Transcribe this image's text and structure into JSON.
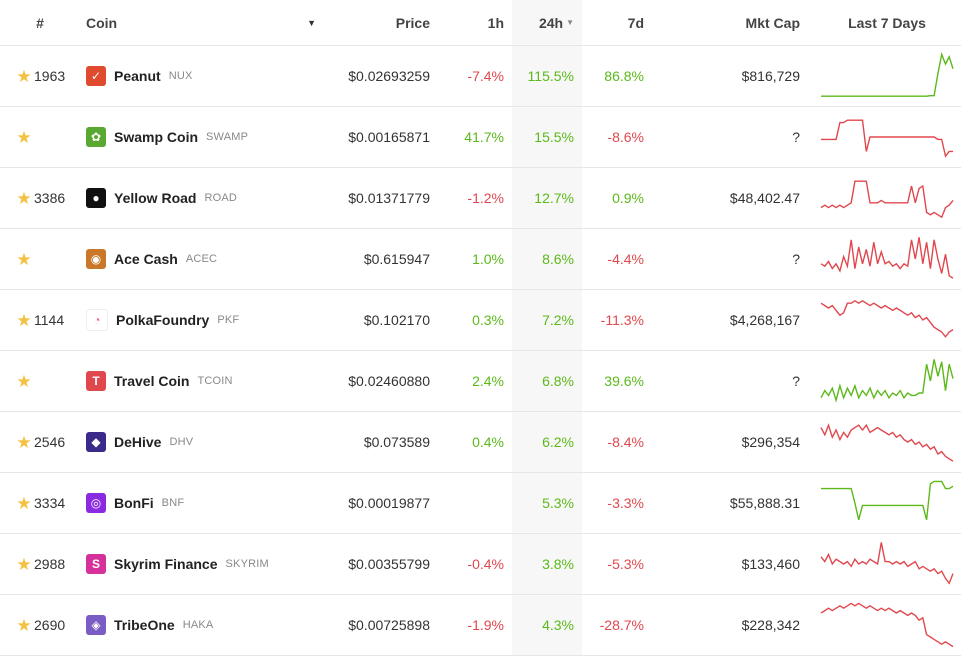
{
  "header": {
    "rank": "#",
    "coin": "Coin",
    "price": "Price",
    "h1": "1h",
    "h24": "24h",
    "d7": "7d",
    "mcap": "Mkt Cap",
    "chart": "Last 7 Days"
  },
  "colors": {
    "positive": "#5cb91a",
    "negative": "#e0484e",
    "star": "#f3c242"
  },
  "rows": [
    {
      "rank": "1963",
      "name": "Peanut",
      "symbol": "NUX",
      "price": "$0.02693259",
      "h1": "-7.4%",
      "h24": "115.5%",
      "d7": "86.8%",
      "mcap": "$816,729",
      "logo_color": "#e04a2e",
      "logo_glyph": "✓",
      "trend": "positive",
      "spark": [
        0.08,
        0.08,
        0.08,
        0.08,
        0.08,
        0.08,
        0.08,
        0.08,
        0.08,
        0.08,
        0.08,
        0.08,
        0.08,
        0.08,
        0.08,
        0.08,
        0.08,
        0.08,
        0.08,
        0.08,
        0.08,
        0.08,
        0.08,
        0.08,
        0.08,
        0.08,
        0.08,
        0.08,
        0.08,
        0.09,
        0.09,
        0.55,
        0.95,
        0.75,
        0.9,
        0.65
      ]
    },
    {
      "rank": "",
      "name": "Swamp Coin",
      "symbol": "SWAMP",
      "price": "$0.00165871",
      "h1": "41.7%",
      "h24": "15.5%",
      "d7": "-8.6%",
      "mcap": "?",
      "logo_color": "#5aa832",
      "logo_glyph": "✿",
      "trend": "negative",
      "spark": [
        0.45,
        0.45,
        0.45,
        0.45,
        0.45,
        0.8,
        0.8,
        0.85,
        0.85,
        0.85,
        0.85,
        0.85,
        0.2,
        0.5,
        0.5,
        0.5,
        0.5,
        0.5,
        0.5,
        0.5,
        0.5,
        0.5,
        0.5,
        0.5,
        0.5,
        0.5,
        0.5,
        0.5,
        0.5,
        0.5,
        0.5,
        0.45,
        0.45,
        0.1,
        0.2,
        0.2
      ]
    },
    {
      "rank": "3386",
      "name": "Yellow Road",
      "symbol": "ROAD",
      "price": "$0.01371779",
      "h1": "-1.2%",
      "h24": "12.7%",
      "d7": "0.9%",
      "mcap": "$48,402.47",
      "logo_color": "#111111",
      "logo_glyph": "●",
      "trend": "negative",
      "spark": [
        0.3,
        0.35,
        0.3,
        0.35,
        0.3,
        0.35,
        0.3,
        0.35,
        0.4,
        0.85,
        0.85,
        0.85,
        0.85,
        0.4,
        0.4,
        0.4,
        0.45,
        0.4,
        0.4,
        0.4,
        0.4,
        0.4,
        0.4,
        0.4,
        0.75,
        0.4,
        0.7,
        0.75,
        0.2,
        0.15,
        0.2,
        0.15,
        0.1,
        0.3,
        0.35,
        0.45
      ]
    },
    {
      "rank": "",
      "name": "Ace Cash",
      "symbol": "ACEC",
      "price": "$0.615947",
      "h1": "1.0%",
      "h24": "8.6%",
      "d7": "-4.4%",
      "mcap": "?",
      "logo_color": "#c9782a",
      "logo_glyph": "◉",
      "trend": "negative",
      "spark": [
        0.4,
        0.35,
        0.45,
        0.3,
        0.4,
        0.25,
        0.55,
        0.35,
        0.9,
        0.3,
        0.75,
        0.4,
        0.7,
        0.35,
        0.85,
        0.4,
        0.65,
        0.4,
        0.45,
        0.35,
        0.4,
        0.3,
        0.4,
        0.35,
        0.9,
        0.5,
        0.95,
        0.4,
        0.85,
        0.3,
        0.9,
        0.5,
        0.2,
        0.6,
        0.15,
        0.1
      ]
    },
    {
      "rank": "1144",
      "name": "PolkaFoundry",
      "symbol": "PKF",
      "price": "$0.102170",
      "h1": "0.3%",
      "h24": "7.2%",
      "d7": "-11.3%",
      "mcap": "$4,268,167",
      "logo_color": "#ffffff",
      "logo_glyph": "◔",
      "trend": "negative",
      "spark": [
        0.85,
        0.8,
        0.75,
        0.8,
        0.7,
        0.6,
        0.65,
        0.85,
        0.85,
        0.9,
        0.85,
        0.9,
        0.85,
        0.8,
        0.85,
        0.8,
        0.75,
        0.8,
        0.75,
        0.7,
        0.75,
        0.7,
        0.65,
        0.6,
        0.65,
        0.55,
        0.6,
        0.5,
        0.55,
        0.45,
        0.35,
        0.3,
        0.25,
        0.15,
        0.25,
        0.3
      ]
    },
    {
      "rank": "",
      "name": "Travel Coin",
      "symbol": "TCOIN",
      "price": "$0.02460880",
      "h1": "2.4%",
      "h24": "6.8%",
      "d7": "39.6%",
      "mcap": "?",
      "logo_color": "#e0484e",
      "logo_glyph": "T",
      "trend": "positive",
      "spark": [
        0.15,
        0.3,
        0.2,
        0.35,
        0.1,
        0.4,
        0.15,
        0.35,
        0.2,
        0.4,
        0.15,
        0.3,
        0.2,
        0.35,
        0.15,
        0.3,
        0.2,
        0.3,
        0.15,
        0.25,
        0.2,
        0.3,
        0.15,
        0.25,
        0.2,
        0.2,
        0.25,
        0.25,
        0.85,
        0.5,
        0.95,
        0.6,
        0.9,
        0.3,
        0.85,
        0.55
      ]
    },
    {
      "rank": "2546",
      "name": "DeHive",
      "symbol": "DHV",
      "price": "$0.073589",
      "h1": "0.4%",
      "h24": "6.2%",
      "d7": "-8.4%",
      "mcap": "$296,354",
      "logo_color": "#3b2a8a",
      "logo_glyph": "◆",
      "trend": "negative",
      "spark": [
        0.8,
        0.65,
        0.85,
        0.6,
        0.75,
        0.55,
        0.7,
        0.6,
        0.75,
        0.8,
        0.85,
        0.75,
        0.85,
        0.7,
        0.75,
        0.8,
        0.75,
        0.7,
        0.65,
        0.7,
        0.6,
        0.65,
        0.55,
        0.5,
        0.55,
        0.45,
        0.5,
        0.4,
        0.45,
        0.35,
        0.4,
        0.25,
        0.3,
        0.2,
        0.15,
        0.1
      ]
    },
    {
      "rank": "3334",
      "name": "BonFi",
      "symbol": "BNF",
      "price": "$0.00019877",
      "h1": "",
      "h24": "5.3%",
      "d7": "-3.3%",
      "mcap": "$55,888.31",
      "logo_color": "#8a2be2",
      "logo_glyph": "◎",
      "trend": "positive",
      "spark": [
        0.8,
        0.8,
        0.8,
        0.8,
        0.8,
        0.8,
        0.8,
        0.8,
        0.8,
        0.5,
        0.15,
        0.45,
        0.45,
        0.45,
        0.45,
        0.45,
        0.45,
        0.45,
        0.45,
        0.45,
        0.45,
        0.45,
        0.45,
        0.45,
        0.45,
        0.45,
        0.45,
        0.45,
        0.15,
        0.9,
        0.95,
        0.95,
        0.95,
        0.8,
        0.8,
        0.85
      ]
    },
    {
      "rank": "2988",
      "name": "Skyrim Finance",
      "symbol": "SKYRIM",
      "price": "$0.00355799",
      "h1": "-0.4%",
      "h24": "3.8%",
      "d7": "-5.3%",
      "mcap": "$133,460",
      "logo_color": "#d6319b",
      "logo_glyph": "S",
      "trend": "negative",
      "spark": [
        0.65,
        0.55,
        0.7,
        0.5,
        0.6,
        0.55,
        0.5,
        0.55,
        0.45,
        0.6,
        0.5,
        0.55,
        0.5,
        0.6,
        0.55,
        0.5,
        0.95,
        0.55,
        0.55,
        0.5,
        0.55,
        0.5,
        0.55,
        0.45,
        0.5,
        0.55,
        0.4,
        0.45,
        0.4,
        0.35,
        0.4,
        0.3,
        0.35,
        0.2,
        0.1,
        0.3
      ]
    },
    {
      "rank": "2690",
      "name": "TribeOne",
      "symbol": "HAKA",
      "price": "$0.00725898",
      "h1": "-1.9%",
      "h24": "4.3%",
      "d7": "-28.7%",
      "mcap": "$228,342",
      "logo_color": "#7b5cc4",
      "logo_glyph": "◈",
      "trend": "negative",
      "spark": [
        0.75,
        0.8,
        0.85,
        0.8,
        0.85,
        0.9,
        0.85,
        0.9,
        0.95,
        0.9,
        0.95,
        0.9,
        0.85,
        0.9,
        0.85,
        0.8,
        0.85,
        0.8,
        0.85,
        0.8,
        0.75,
        0.8,
        0.75,
        0.7,
        0.75,
        0.7,
        0.6,
        0.65,
        0.3,
        0.25,
        0.2,
        0.15,
        0.1,
        0.15,
        0.1,
        0.05
      ]
    }
  ]
}
